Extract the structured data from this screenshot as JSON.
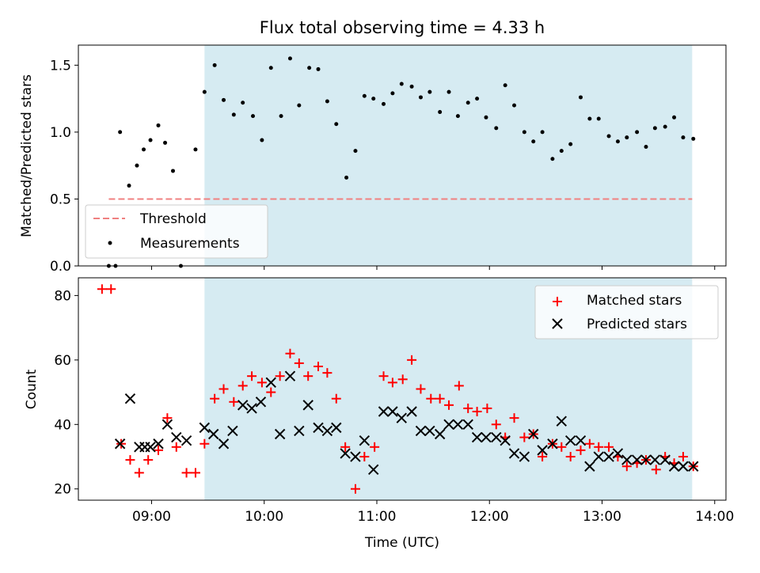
{
  "chart_data": [
    {
      "type": "scatter",
      "title": "Flux total observing time = 4.33 h",
      "xlabel": "",
      "ylabel": "Matched/Predicted stars",
      "xlim": [
        8.35,
        14.1
      ],
      "ylim": [
        0,
        1.65
      ],
      "yticks": [
        0.0,
        0.5,
        1.0,
        1.5
      ],
      "ytick_labels": [
        "0.0",
        "0.5",
        "1.0",
        "1.5"
      ],
      "shaded_span": {
        "x0": 9.47,
        "x1": 13.8,
        "color": "#add8e6"
      },
      "threshold": {
        "name": "Threshold",
        "value": 0.5,
        "x0": 8.62,
        "x1": 13.8,
        "color": "#f08080"
      },
      "legend": {
        "position": "lower-left",
        "entries": [
          {
            "label": "Threshold",
            "marker": "dashed-line"
          },
          {
            "label": "Measurements",
            "marker": "dot"
          }
        ]
      },
      "series": [
        {
          "name": "Measurements",
          "color": "#000000",
          "x": [
            8.62,
            8.68,
            8.72,
            8.8,
            8.87,
            8.93,
            8.99,
            9.06,
            9.12,
            9.19,
            9.26,
            9.39,
            9.47,
            9.56,
            9.64,
            9.73,
            9.81,
            9.9,
            9.98,
            10.06,
            10.15,
            10.23,
            10.31,
            10.4,
            10.48,
            10.56,
            10.64,
            10.73,
            10.81,
            10.89,
            10.97,
            11.06,
            11.14,
            11.22,
            11.31,
            11.39,
            11.47,
            11.56,
            11.64,
            11.72,
            11.81,
            11.89,
            11.97,
            12.06,
            12.14,
            12.22,
            12.31,
            12.39,
            12.47,
            12.56,
            12.64,
            12.72,
            12.81,
            12.89,
            12.97,
            13.06,
            13.14,
            13.22,
            13.31,
            13.39,
            13.47,
            13.56,
            13.64,
            13.72,
            13.81
          ],
          "y": [
            0.0,
            0.0,
            1.0,
            0.6,
            0.75,
            0.87,
            0.94,
            1.05,
            0.92,
            0.71,
            0.0,
            0.87,
            1.3,
            1.5,
            1.24,
            1.13,
            1.22,
            1.12,
            0.94,
            1.48,
            1.12,
            1.55,
            1.2,
            1.48,
            1.47,
            1.23,
            1.06,
            0.66,
            0.86,
            1.27,
            1.25,
            1.21,
            1.29,
            1.36,
            1.34,
            1.26,
            1.3,
            1.15,
            1.3,
            1.12,
            1.22,
            1.25,
            1.11,
            1.03,
            1.35,
            1.2,
            1.0,
            0.93,
            1.0,
            0.8,
            0.86,
            0.91,
            1.26,
            1.1,
            1.1,
            0.97,
            0.93,
            0.96,
            1.0,
            0.89,
            1.03,
            1.04,
            1.11,
            0.96,
            0.95
          ]
        }
      ]
    },
    {
      "type": "scatter",
      "title": "",
      "xlabel": "Time (UTC)",
      "ylabel": "Count",
      "xlim": [
        8.35,
        14.1
      ],
      "ylim": [
        16.5,
        85.5
      ],
      "xticks": [
        9,
        10,
        11,
        12,
        13,
        14
      ],
      "xtick_labels": [
        "09:00",
        "10:00",
        "11:00",
        "12:00",
        "13:00",
        "14:00"
      ],
      "yticks": [
        20,
        40,
        60,
        80
      ],
      "ytick_labels": [
        "20",
        "40",
        "60",
        "80"
      ],
      "shaded_span": {
        "x0": 9.47,
        "x1": 13.8,
        "color": "#add8e6"
      },
      "legend": {
        "position": "top-right",
        "entries": [
          {
            "label": "Matched stars",
            "marker": "plus"
          },
          {
            "label": "Predicted stars",
            "marker": "x"
          }
        ]
      },
      "series": [
        {
          "name": "Matched stars",
          "color": "#ff0000",
          "x": [
            8.56,
            8.64,
            8.73,
            8.81,
            8.89,
            8.97,
            9.06,
            9.14,
            9.22,
            9.31,
            9.39,
            9.47,
            9.56,
            9.64,
            9.73,
            9.81,
            9.89,
            9.98,
            10.06,
            10.14,
            10.23,
            10.31,
            10.39,
            10.48,
            10.56,
            10.64,
            10.72,
            10.81,
            10.89,
            10.98,
            11.06,
            11.14,
            11.23,
            11.31,
            11.39,
            11.48,
            11.56,
            11.64,
            11.73,
            11.81,
            11.89,
            11.98,
            12.06,
            12.14,
            12.22,
            12.31,
            12.39,
            12.47,
            12.56,
            12.64,
            12.72,
            12.81,
            12.89,
            12.97,
            13.06,
            13.14,
            13.22,
            13.31,
            13.39,
            13.48,
            13.56,
            13.64,
            13.72,
            13.81
          ],
          "y": [
            82,
            82,
            34,
            29,
            25,
            29,
            32,
            42,
            33,
            25,
            25,
            34,
            48,
            51,
            47,
            52,
            55,
            53,
            50,
            55,
            62,
            59,
            55,
            58,
            56,
            48,
            33,
            20,
            30,
            33,
            55,
            53,
            54,
            60,
            51,
            48,
            48,
            46,
            52,
            45,
            44,
            45,
            40,
            36,
            42,
            36,
            37,
            30,
            34,
            33,
            30,
            32,
            34,
            33,
            33,
            30,
            27,
            28,
            29,
            26,
            30,
            28,
            30,
            27
          ]
        },
        {
          "name": "Predicted stars",
          "color": "#000000",
          "x": [
            8.72,
            8.81,
            8.89,
            8.94,
            8.99,
            9.06,
            9.14,
            9.22,
            9.31,
            9.47,
            9.55,
            9.64,
            9.72,
            9.81,
            9.89,
            9.97,
            10.06,
            10.14,
            10.23,
            10.31,
            10.39,
            10.48,
            10.56,
            10.64,
            10.72,
            10.81,
            10.89,
            10.97,
            11.06,
            11.14,
            11.22,
            11.31,
            11.39,
            11.47,
            11.56,
            11.64,
            11.72,
            11.81,
            11.89,
            11.97,
            12.06,
            12.14,
            12.22,
            12.31,
            12.39,
            12.47,
            12.56,
            12.64,
            12.72,
            12.81,
            12.89,
            12.97,
            13.06,
            13.14,
            13.22,
            13.31,
            13.39,
            13.47,
            13.56,
            13.64,
            13.72,
            13.81
          ],
          "y": [
            34,
            48,
            33,
            33,
            33,
            34,
            40,
            36,
            35,
            39,
            37,
            34,
            38,
            46,
            45,
            47,
            53,
            37,
            55,
            38,
            46,
            39,
            38,
            39,
            31,
            30,
            35,
            26,
            44,
            44,
            42,
            44,
            38,
            38,
            37,
            40,
            40,
            40,
            36,
            36,
            36,
            35,
            31,
            30,
            37,
            32,
            34,
            41,
            35,
            35,
            27,
            30,
            30,
            31,
            29,
            29,
            29,
            29,
            29,
            27,
            27,
            27
          ]
        }
      ]
    }
  ]
}
